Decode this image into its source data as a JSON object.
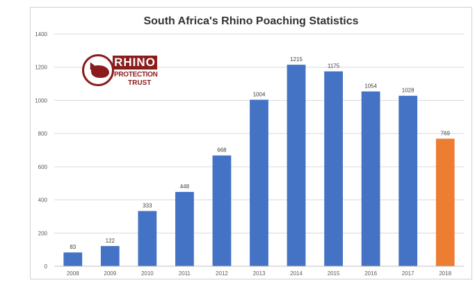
{
  "chart_data": {
    "type": "bar",
    "title": "South Africa's Rhino Poaching Statistics",
    "categories": [
      "2008",
      "2009",
      "2010",
      "2011",
      "2012",
      "2013",
      "2014",
      "2015",
      "2016",
      "2017",
      "2018"
    ],
    "series": [
      {
        "values": [
          83,
          122,
          333,
          448,
          668,
          1004,
          1215,
          1175,
          1054,
          1028,
          769
        ]
      }
    ],
    "ylim": [
      0,
      1400
    ],
    "yticks": [
      0,
      200,
      400,
      600,
      800,
      1000,
      1200,
      1400
    ],
    "grid": true,
    "bar_color": "#4472c4",
    "highlight_color": "#ed7d31",
    "highlight_category": "2018",
    "data_labels": true
  },
  "logo": {
    "word": "RHINO",
    "line1": "PROTECTION",
    "line2": "TRUST",
    "color": "#8b1c1c"
  }
}
